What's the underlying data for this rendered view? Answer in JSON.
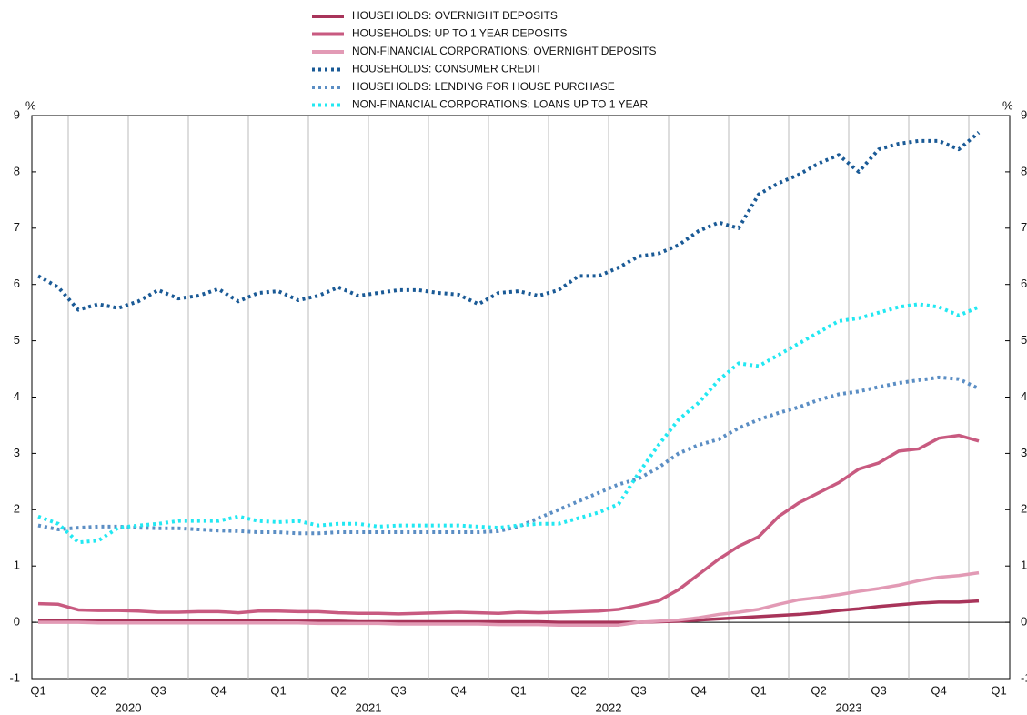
{
  "chart_data": {
    "type": "line",
    "y_unit": "%",
    "categories": [
      "Q1",
      null,
      null,
      "Q2",
      null,
      null,
      "Q3",
      null,
      null,
      "Q4",
      null,
      null,
      "Q1",
      null,
      null,
      "Q2",
      null,
      null,
      "Q3",
      null,
      null,
      "Q4",
      null,
      null,
      "Q1",
      null,
      null,
      "Q2",
      null,
      null,
      "Q3",
      null,
      null,
      "Q4",
      null,
      null,
      "Q1",
      null,
      null,
      "Q2",
      null,
      null,
      "Q3",
      null,
      null,
      "Q4",
      null,
      null,
      "Q1"
    ],
    "years": [
      "2020",
      "2021",
      "2022",
      "2023"
    ],
    "ylim": [
      -1,
      9
    ],
    "yticks": [
      -1,
      0,
      1,
      2,
      3,
      4,
      5,
      6,
      7,
      8,
      9
    ],
    "series": [
      {
        "name": "HOUSEHOLDS: OVERNIGHT DEPOSITS",
        "color": "#a8345a",
        "style": "solid",
        "values": [
          0.03,
          0.03,
          0.03,
          0.03,
          0.03,
          0.03,
          0.03,
          0.03,
          0.03,
          0.03,
          0.03,
          0.03,
          0.02,
          0.02,
          0.02,
          0.02,
          0.01,
          0.01,
          0.01,
          0.01,
          0.01,
          0.01,
          0.01,
          0.01,
          0.01,
          0.01,
          0,
          0,
          0,
          0,
          0,
          0.01,
          0.02,
          0.04,
          0.06,
          0.08,
          0.1,
          0.12,
          0.14,
          0.17,
          0.21,
          0.24,
          0.28,
          0.31,
          0.34,
          0.36,
          0.36,
          0.38,
          null
        ]
      },
      {
        "name": "HOUSEHOLDS: UP TO 1 YEAR DEPOSITS",
        "color": "#c85a80",
        "style": "solid",
        "values": [
          0.33,
          0.32,
          0.22,
          0.21,
          0.21,
          0.2,
          0.18,
          0.18,
          0.19,
          0.19,
          0.17,
          0.2,
          0.2,
          0.19,
          0.19,
          0.17,
          0.16,
          0.16,
          0.15,
          0.16,
          0.17,
          0.18,
          0.17,
          0.16,
          0.18,
          0.17,
          0.18,
          0.19,
          0.2,
          0.23,
          0.3,
          0.38,
          0.58,
          0.85,
          1.12,
          1.35,
          1.52,
          1.88,
          2.12,
          2.3,
          2.48,
          2.72,
          2.83,
          3.04,
          3.08,
          3.27,
          3.32,
          3.22,
          null
        ]
      },
      {
        "name": "NON-FINANCIAL CORPORATIONS: OVERNIGHT DEPOSITS",
        "color": "#e29ab5",
        "style": "solid",
        "values": [
          0,
          0,
          0,
          -0.01,
          -0.01,
          -0.01,
          -0.01,
          -0.01,
          -0.01,
          -0.01,
          -0.01,
          -0.01,
          -0.01,
          -0.01,
          -0.02,
          -0.02,
          -0.02,
          -0.02,
          -0.03,
          -0.03,
          -0.03,
          -0.03,
          -0.03,
          -0.04,
          -0.04,
          -0.04,
          -0.05,
          -0.05,
          -0.05,
          -0.05,
          0,
          0.02,
          0.04,
          0.08,
          0.14,
          0.18,
          0.23,
          0.32,
          0.4,
          0.44,
          0.49,
          0.55,
          0.6,
          0.66,
          0.74,
          0.8,
          0.83,
          0.88,
          null
        ]
      },
      {
        "name": "HOUSEHOLDS: CONSUMER CREDIT",
        "color": "#1a5a96",
        "style": "dotted",
        "values": [
          6.15,
          5.95,
          5.55,
          5.65,
          5.58,
          5.7,
          5.9,
          5.75,
          5.8,
          5.92,
          5.7,
          5.85,
          5.88,
          5.72,
          5.8,
          5.95,
          5.8,
          5.85,
          5.9,
          5.9,
          5.85,
          5.82,
          5.65,
          5.85,
          5.88,
          5.8,
          5.9,
          6.15,
          6.15,
          6.3,
          6.5,
          6.55,
          6.7,
          6.95,
          7.1,
          7.0,
          7.6,
          7.8,
          7.95,
          8.15,
          8.3,
          8.0,
          8.4,
          8.5,
          8.55,
          8.55,
          8.4,
          8.7,
          null
        ]
      },
      {
        "name": "HOUSEHOLDS: LENDING FOR HOUSE PURCHASE",
        "color": "#5b8ec4",
        "style": "dotted",
        "values": [
          1.72,
          1.65,
          1.68,
          1.7,
          1.7,
          1.68,
          1.67,
          1.67,
          1.65,
          1.63,
          1.62,
          1.6,
          1.6,
          1.58,
          1.58,
          1.6,
          1.6,
          1.6,
          1.6,
          1.6,
          1.6,
          1.6,
          1.6,
          1.62,
          1.7,
          1.85,
          2.0,
          2.15,
          2.3,
          2.45,
          2.55,
          2.75,
          3.0,
          3.15,
          3.25,
          3.45,
          3.6,
          3.72,
          3.82,
          3.95,
          4.05,
          4.1,
          4.18,
          4.25,
          4.3,
          4.35,
          4.32,
          4.15,
          null
        ]
      },
      {
        "name": "NON-FINANCIAL CORPORATIONS: LOANS UP TO 1 YEAR",
        "color": "#22e8f2",
        "style": "dotted",
        "values": [
          1.88,
          1.75,
          1.42,
          1.45,
          1.68,
          1.72,
          1.75,
          1.8,
          1.8,
          1.8,
          1.88,
          1.8,
          1.78,
          1.8,
          1.72,
          1.75,
          1.75,
          1.7,
          1.72,
          1.72,
          1.72,
          1.72,
          1.7,
          1.68,
          1.72,
          1.75,
          1.75,
          1.85,
          1.95,
          2.1,
          2.65,
          3.15,
          3.6,
          3.9,
          4.3,
          4.6,
          4.55,
          4.75,
          4.95,
          5.15,
          5.35,
          5.4,
          5.5,
          5.6,
          5.65,
          5.6,
          5.45,
          5.6,
          null
        ]
      }
    ]
  }
}
